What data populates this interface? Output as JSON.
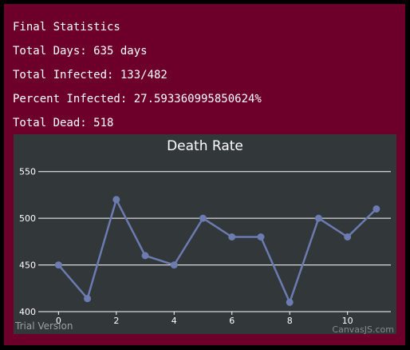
{
  "stats": {
    "heading": "Final Statistics",
    "total_days": "Total Days: 635 days",
    "total_infected": "Total Infected: 133/482",
    "percent_infected": "Percent Infected: 27.593360995850624%",
    "total_dead": "Total Dead: 518"
  },
  "chart_data": {
    "type": "line",
    "title": "Death Rate",
    "x": [
      0,
      1,
      2,
      3,
      4,
      5,
      6,
      7,
      8,
      9,
      10,
      11
    ],
    "values": [
      450,
      414,
      520,
      460,
      450,
      500,
      480,
      480,
      410,
      500,
      480,
      510
    ],
    "xlim": [
      -0.7,
      11.5
    ],
    "ylim": [
      400,
      560
    ],
    "x_ticks": [
      0,
      2,
      4,
      6,
      8,
      10
    ],
    "y_ticks": [
      400,
      450,
      500,
      550
    ],
    "horizontal_grid": true,
    "line_color": "#6c7bb0",
    "background": "#32373a"
  },
  "watermarks": {
    "left": "Trial Version",
    "right": "CanvasJS.com"
  },
  "colors": {
    "panel": "#6c002a",
    "page": "#000000"
  }
}
